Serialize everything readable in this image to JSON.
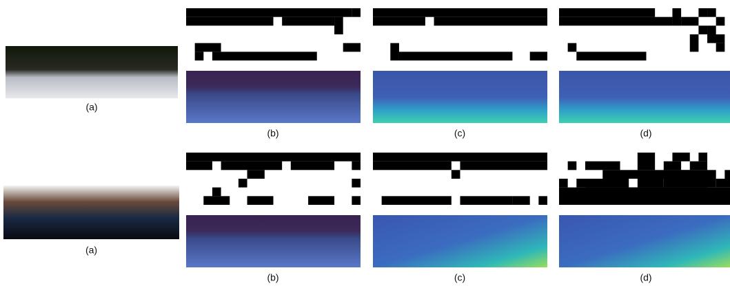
{
  "rows": [
    {
      "captions": [
        "(a)",
        "(b)",
        "(c)",
        "(d)"
      ]
    },
    {
      "captions": [
        "(a)",
        "(b)",
        "(c)",
        "(d)"
      ]
    }
  ]
}
